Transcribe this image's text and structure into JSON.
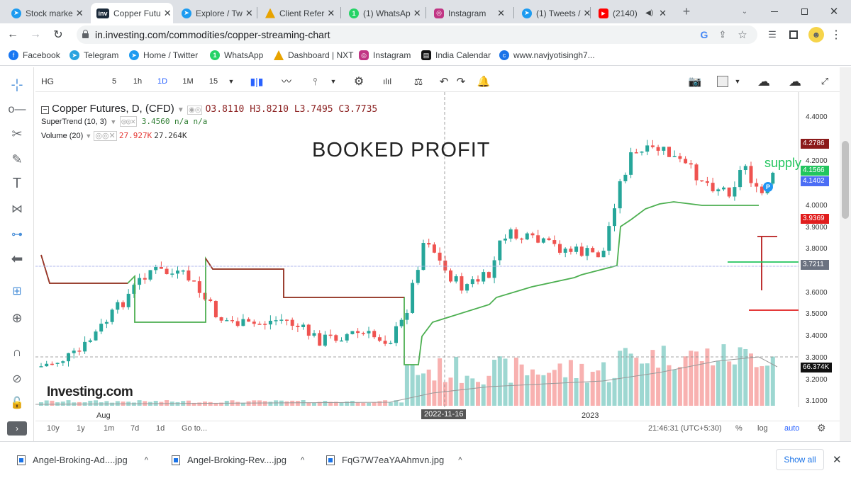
{
  "tabs": [
    {
      "title": "Stock marke",
      "icon_color": "#1d9bf0",
      "active": false
    },
    {
      "title": "Copper Futu",
      "icon_color": "#1b2a3a",
      "active": true
    },
    {
      "title": "Explore / Tw",
      "icon_color": "#1d9bf0",
      "active": false
    },
    {
      "title": "Client Refer",
      "icon_color": "#e8a300",
      "active": false
    },
    {
      "title": "(1) WhatsAp",
      "icon_color": "#25d366",
      "active": false
    },
    {
      "title": "Instagram",
      "icon_color": "#c13584",
      "active": false
    },
    {
      "title": "(1) Tweets /",
      "icon_color": "#1d9bf0",
      "active": false
    },
    {
      "title": "(2140)",
      "icon_color": "#ff0000",
      "active": false
    }
  ],
  "tab_close": "✕",
  "tab_favicon_text": "inv",
  "whatsapp_badge": "1",
  "new_tab": "+",
  "url": "in.investing.com/commodities/copper-streaming-chart",
  "bookmarks": [
    {
      "label": "Facebook",
      "icon_color": "#1877f2"
    },
    {
      "label": "Telegram",
      "icon_color": "#2aa3df"
    },
    {
      "label": "Home / Twitter",
      "icon_color": "#1d9bf0"
    },
    {
      "label": "WhatsApp",
      "icon_color": "#25d366"
    },
    {
      "label": "Dashboard | NXT",
      "icon_color": "#e8a300"
    },
    {
      "label": "Instagram",
      "icon_color": "#c13584"
    },
    {
      "label": "India Calendar",
      "icon_color": "#111111"
    },
    {
      "label": "www.navjyotisingh7...",
      "icon_color": "#1a73e8"
    }
  ],
  "toolbar": {
    "symbol": "HG",
    "intervals": [
      "5",
      "1h",
      "1D",
      "1M",
      "15"
    ],
    "active_interval": "1D"
  },
  "legend": {
    "title": "Copper Futures, D, (CFD)",
    "ohlc": "O3.8110  H3.8210  L3.7495  C3.7735",
    "supertrend_label": "SuperTrend (10, 3)",
    "supertrend_value": "3.4560  n/a  n/a",
    "volume_label": "Volume (20)",
    "volume_value1": "27.927K",
    "volume_value2": "27.264K"
  },
  "annotation": "BOOKED PROFIT",
  "supply_label": "supply",
  "pin_label": "P",
  "logo": "Investing.com",
  "price_axis": [
    "4.4000",
    "4.2000",
    "4.0000",
    "3.9000",
    "3.8000",
    "3.6000",
    "3.5000",
    "3.4000",
    "3.3000",
    "3.2000",
    "3.1000"
  ],
  "price_tags": [
    {
      "value": "4.2786",
      "color": "#8b1a1a"
    },
    {
      "value": "4.1566",
      "color": "#22c55e"
    },
    {
      "value": "4.1402",
      "color": "#4c6ef5"
    },
    {
      "value": "3.9369",
      "color": "#e11d1d"
    },
    {
      "value": "3.7211",
      "color": "#6b7280"
    },
    {
      "value": "66.374K",
      "color": "#111111"
    }
  ],
  "time_axis": {
    "aug": "Aug",
    "highlight": "2022-11-16",
    "year": "2023"
  },
  "bottom_bar": {
    "ranges": [
      "10y",
      "1y",
      "1m",
      "7d",
      "1d"
    ],
    "goto": "Go to...",
    "clock": "21:46:31 (UTC+5:30)",
    "percent": "%",
    "log": "log",
    "auto": "auto"
  },
  "downloads": [
    "Angel-Broking-Ad....jpg",
    "Angel-Broking-Rev....jpg",
    "FqG7W7eaYAAhmvn.jpg"
  ],
  "show_all": "Show all",
  "colors": {
    "up": "#26a69a",
    "down": "#ef5350",
    "supertrend_up": "#4caf50",
    "supertrend_down": "#a0332b"
  }
}
